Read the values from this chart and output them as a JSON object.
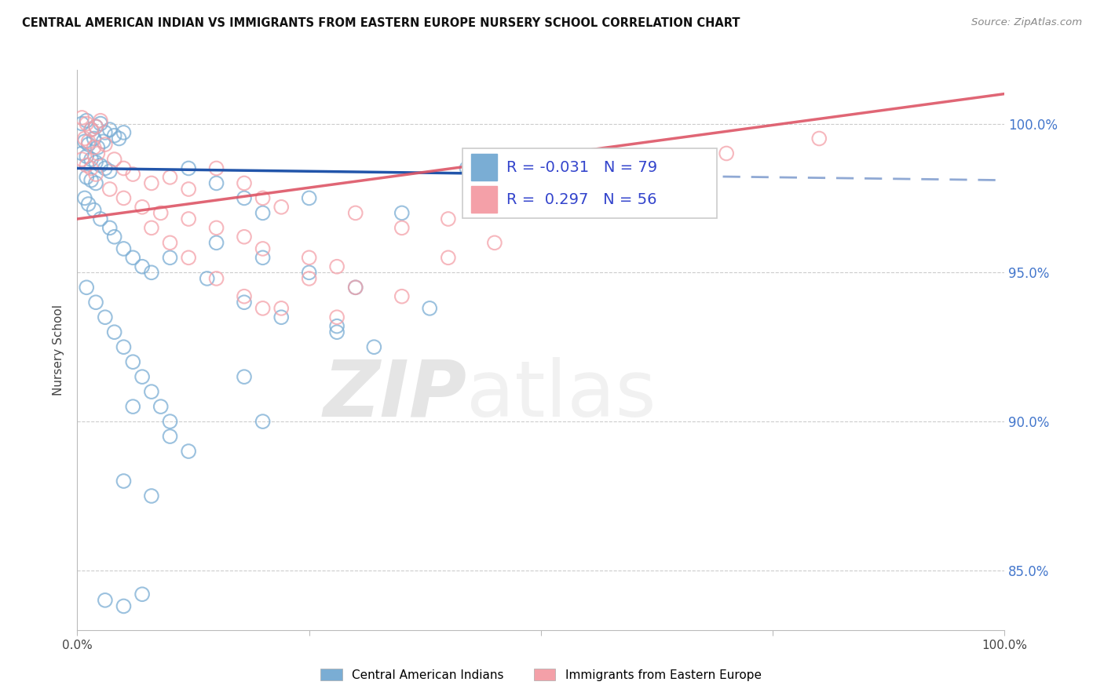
{
  "title": "CENTRAL AMERICAN INDIAN VS IMMIGRANTS FROM EASTERN EUROPE NURSERY SCHOOL CORRELATION CHART",
  "source": "Source: ZipAtlas.com",
  "ylabel": "Nursery School",
  "x_min": 0.0,
  "x_max": 100.0,
  "y_min": 83.0,
  "y_max": 101.8,
  "r_blue": -0.031,
  "n_blue": 79,
  "r_pink": 0.297,
  "n_pink": 56,
  "legend_label_blue": "Central American Indians",
  "legend_label_pink": "Immigrants from Eastern Europe",
  "blue_color": "#7AADD4",
  "pink_color": "#F4A0A8",
  "blue_line_color": "#2255AA",
  "pink_line_color": "#DD5566",
  "y_ticks": [
    85.0,
    90.0,
    95.0,
    100.0
  ],
  "y_tick_labels": [
    "85.0%",
    "90.0%",
    "95.0%",
    "100.0%"
  ],
  "blue_line_y0": 98.5,
  "blue_line_y100": 98.1,
  "blue_solid_end_x": 45,
  "pink_line_y0": 96.8,
  "pink_line_y100": 101.0,
  "watermark_zip": "ZIP",
  "watermark_atlas": "atlas"
}
